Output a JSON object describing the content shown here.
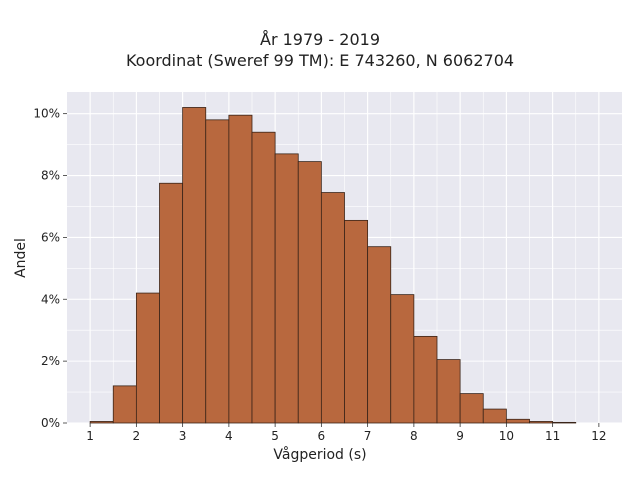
{
  "chart_data": {
    "type": "bar",
    "title": "År 1979 - 2019",
    "subtitle": "Koordinat (Sweref 99 TM): E 743260, N 6062704",
    "xlabel": "Vågperiod (s)",
    "ylabel": "Andel",
    "xlim": [
      0.5,
      12.5
    ],
    "ylim": [
      0,
      10.7
    ],
    "xticks": [
      "1",
      "2",
      "3",
      "4",
      "5",
      "6",
      "7",
      "8",
      "9",
      "10",
      "11",
      "12"
    ],
    "yticks": [
      "0%",
      "2%",
      "4%",
      "6%",
      "8%",
      "10%"
    ],
    "bin_width": 0.5,
    "bins": [
      {
        "start": 1.0,
        "value": 0.05
      },
      {
        "start": 1.5,
        "value": 1.2
      },
      {
        "start": 2.0,
        "value": 4.2
      },
      {
        "start": 2.5,
        "value": 7.75
      },
      {
        "start": 3.0,
        "value": 10.2
      },
      {
        "start": 3.5,
        "value": 9.8
      },
      {
        "start": 4.0,
        "value": 9.95
      },
      {
        "start": 4.5,
        "value": 9.4
      },
      {
        "start": 5.0,
        "value": 8.7
      },
      {
        "start": 5.5,
        "value": 8.45
      },
      {
        "start": 6.0,
        "value": 7.45
      },
      {
        "start": 6.5,
        "value": 6.55
      },
      {
        "start": 7.0,
        "value": 5.7
      },
      {
        "start": 7.5,
        "value": 4.15
      },
      {
        "start": 8.0,
        "value": 2.8
      },
      {
        "start": 8.5,
        "value": 2.05
      },
      {
        "start": 9.0,
        "value": 0.95
      },
      {
        "start": 9.5,
        "value": 0.45
      },
      {
        "start": 10.0,
        "value": 0.12
      },
      {
        "start": 10.5,
        "value": 0.05
      },
      {
        "start": 11.0,
        "value": 0.02
      }
    ],
    "grid": true,
    "bar_color": "#b8683e",
    "bar_edge_color": "#3a2418",
    "plot_background": "#e8e8f0"
  }
}
